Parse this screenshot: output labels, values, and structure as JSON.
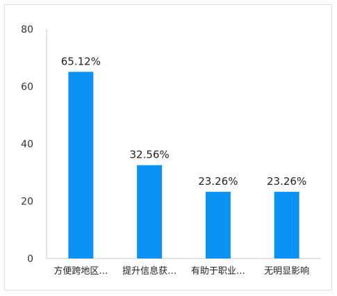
{
  "chart_data": {
    "type": "bar",
    "title": "",
    "xlabel": "",
    "ylabel": "",
    "ylim": [
      0,
      80
    ],
    "yticks": [
      0,
      20,
      40,
      60,
      80
    ],
    "categories": [
      "方便跨地区…",
      "提升信息获…",
      "有助于职业…",
      "无明显影响"
    ],
    "values": [
      65.12,
      32.56,
      23.26,
      23.26
    ],
    "data_labels": [
      "65.12%",
      "32.56%",
      "23.26%",
      "23.26%"
    ],
    "grid": false,
    "legend": "none",
    "bar_color": "#0a93f5",
    "axis_color": "#c8c8c8"
  }
}
